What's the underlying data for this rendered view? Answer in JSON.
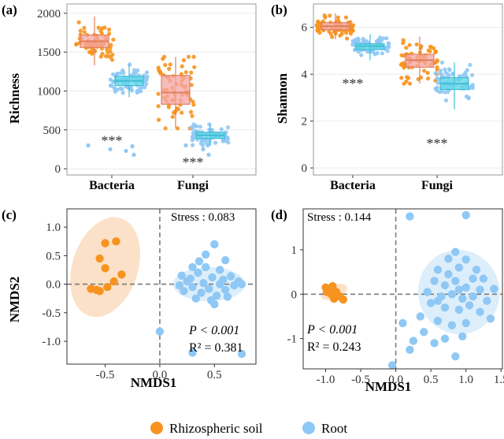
{
  "colors": {
    "soil": "#f7931e",
    "root": "#8fc8f4",
    "soil_box": "#f4a6a6",
    "root_box": "#5fd6e8",
    "soil_ellipse": "#fbdcc0",
    "root_ellipse": "#d7ebfa",
    "panel_border": "#9a9a9a",
    "dash": "#7a7a7a"
  },
  "chart_data": [
    {
      "panel_label": "(a)",
      "type": "box",
      "title": "",
      "xlabel": "",
      "ylabel": "Richness",
      "categories": [
        "Bacteria",
        "Fungi"
      ],
      "ylim": [
        -80,
        2120
      ],
      "yticks": [
        0,
        500,
        1000,
        1500,
        2000
      ],
      "yticklabels": [
        "0",
        "500",
        "1000",
        "1500",
        "2000"
      ],
      "series": [
        {
          "name": "Rhizospheric soil",
          "color_key": "soil",
          "boxes": [
            {
              "category": "Bacteria",
              "q1": 1560,
              "median": 1640,
              "q3": 1720,
              "whisker_low": 1330,
              "whisker_high": 1960
            },
            {
              "category": "Fungi",
              "q1": 830,
              "median": 980,
              "q3": 1200,
              "whisker_low": 520,
              "whisker_high": 1440
            }
          ]
        },
        {
          "name": "Root",
          "color_key": "root",
          "boxes": [
            {
              "category": "Bacteria",
              "q1": 1070,
              "median": 1130,
              "q3": 1190,
              "whisker_low": 920,
              "whisker_high": 1340
            },
            {
              "category": "Fungi",
              "q1": 390,
              "median": 430,
              "q3": 470,
              "whisker_low": 300,
              "whisker_high": 570
            }
          ]
        }
      ],
      "annotations": [
        {
          "category": "Bacteria",
          "y": 300,
          "text": "***"
        },
        {
          "category": "Fungi",
          "y": 20,
          "text": "***"
        }
      ]
    },
    {
      "panel_label": "(b)",
      "type": "box",
      "title": "",
      "xlabel": "",
      "ylabel": "Shannon",
      "categories": [
        "Bacteria",
        "Fungi"
      ],
      "ylim": [
        -0.3,
        7.0
      ],
      "yticks": [
        0,
        2,
        4,
        6
      ],
      "yticklabels": [
        "0",
        "2",
        "4",
        "6"
      ],
      "series": [
        {
          "name": "Rhizospheric soil",
          "color_key": "soil",
          "boxes": [
            {
              "category": "Bacteria",
              "q1": 5.9,
              "median": 6.05,
              "q3": 6.2,
              "whisker_low": 5.5,
              "whisker_high": 6.6
            },
            {
              "category": "Fungi",
              "q1": 4.3,
              "median": 4.6,
              "q3": 4.85,
              "whisker_low": 3.6,
              "whisker_high": 5.6
            }
          ]
        },
        {
          "name": "Root",
          "color_key": "root",
          "boxes": [
            {
              "category": "Bacteria",
              "q1": 5.05,
              "median": 5.2,
              "q3": 5.3,
              "whisker_low": 4.6,
              "whisker_high": 5.7
            },
            {
              "category": "Fungi",
              "q1": 3.35,
              "median": 3.6,
              "q3": 3.85,
              "whisker_low": 2.5,
              "whisker_high": 4.5
            }
          ]
        }
      ],
      "annotations": [
        {
          "category": "Bacteria",
          "y": 3.4,
          "text": "***"
        },
        {
          "category": "Fungi",
          "y": 0.85,
          "text": "***"
        }
      ]
    },
    {
      "panel_label": "(c)",
      "type": "scatter",
      "xlabel": "NMDS1",
      "ylabel": "NMDS2",
      "xlim": [
        -0.85,
        0.88
      ],
      "ylim": [
        -1.4,
        1.32
      ],
      "xticks": [
        -0.5,
        0.0,
        0.5
      ],
      "xticklabels": [
        "-0.5",
        "0.0",
        "0.5"
      ],
      "yticks": [
        -1.0,
        -0.5,
        0.0,
        0.5,
        1.0
      ],
      "yticklabels": [
        "-1.0",
        "-0.5",
        "0.0",
        "0.5",
        "1.0"
      ],
      "stress_text": "Stress : 0.083",
      "p_text": "P <  0.001",
      "r2_text": "R² = 0.381",
      "ellipses": [
        {
          "series": "Rhizospheric soil",
          "cx": -0.5,
          "cy": 0.3,
          "rx": 0.3,
          "ry": 0.9,
          "angle": 18
        },
        {
          "series": "Root",
          "cx": 0.45,
          "cy": 0.0,
          "rx": 0.33,
          "ry": 0.3,
          "angle": 0
        }
      ],
      "series": [
        {
          "name": "Rhizospheric soil",
          "color_key": "soil",
          "points": [
            [
              -0.5,
              0.72
            ],
            [
              -0.4,
              0.75
            ],
            [
              -0.55,
              0.45
            ],
            [
              -0.5,
              0.28
            ],
            [
              -0.35,
              0.17
            ],
            [
              -0.42,
              0.05
            ],
            [
              -0.48,
              -0.05
            ],
            [
              -0.58,
              -0.1
            ],
            [
              -0.63,
              -0.08
            ],
            [
              -0.55,
              -0.12
            ]
          ]
        },
        {
          "name": "Root",
          "color_key": "root",
          "points": [
            [
              0.5,
              0.7
            ],
            [
              0.42,
              0.52
            ],
            [
              0.6,
              0.42
            ],
            [
              0.3,
              0.3
            ],
            [
              0.55,
              0.25
            ],
            [
              0.2,
              0.15
            ],
            [
              0.35,
              0.2
            ],
            [
              0.48,
              0.12
            ],
            [
              0.65,
              0.14
            ],
            [
              0.72,
              0.05
            ],
            [
              0.25,
              0.05
            ],
            [
              0.4,
              0.02
            ],
            [
              0.55,
              0.0
            ],
            [
              0.68,
              -0.02
            ],
            [
              0.3,
              -0.05
            ],
            [
              0.45,
              -0.08
            ],
            [
              0.6,
              -0.1
            ],
            [
              0.22,
              -0.12
            ],
            [
              0.38,
              -0.15
            ],
            [
              0.52,
              -0.2
            ],
            [
              0.33,
              -0.25
            ],
            [
              0.47,
              -0.28
            ],
            [
              0.62,
              -0.22
            ],
            [
              0.28,
              0.1
            ],
            [
              0.58,
              0.08
            ],
            [
              0.75,
              0.0
            ],
            [
              0.18,
              -0.02
            ],
            [
              0.42,
              0.3
            ],
            [
              0.5,
              -0.35
            ],
            [
              0.36,
              0.4
            ],
            [
              0.0,
              -0.83
            ],
            [
              0.3,
              -1.2
            ],
            [
              0.75,
              -1.22
            ]
          ]
        }
      ]
    },
    {
      "panel_label": "(d)",
      "type": "scatter",
      "xlabel": "NMDS1",
      "ylabel": "",
      "xlim": [
        -1.32,
        1.52
      ],
      "ylim": [
        -1.68,
        1.92
      ],
      "xticks": [
        -1.0,
        -0.5,
        0.0,
        0.5,
        1.0,
        1.5
      ],
      "xticklabels": [
        "-1.0",
        "-0.5",
        "0.0",
        "0.5",
        "1.0",
        "1.5"
      ],
      "yticks": [
        -1,
        0,
        1
      ],
      "yticklabels": [
        "-1",
        "0",
        "1"
      ],
      "stress_text": "Stress : 0.144",
      "p_text": "P <  0.001",
      "r2_text": "R² = 0.243",
      "ellipses": [
        {
          "series": "Rhizospheric soil",
          "cx": -0.88,
          "cy": 0.05,
          "rx": 0.2,
          "ry": 0.16,
          "angle": -20
        },
        {
          "series": "Root",
          "cx": 0.9,
          "cy": 0.05,
          "rx": 0.58,
          "ry": 0.95,
          "angle": -15
        }
      ],
      "series": [
        {
          "name": "Rhizospheric soil",
          "color_key": "soil",
          "points": [
            [
              -1.0,
              0.15
            ],
            [
              -0.95,
              0.1
            ],
            [
              -0.9,
              0.18
            ],
            [
              -0.85,
              0.05
            ],
            [
              -0.92,
              0.0
            ],
            [
              -0.8,
              -0.05
            ],
            [
              -0.88,
              -0.1
            ],
            [
              -0.75,
              -0.12
            ],
            [
              -0.98,
              0.05
            ]
          ]
        },
        {
          "name": "Root",
          "color_key": "root",
          "points": [
            [
              0.2,
              1.75
            ],
            [
              1.0,
              1.78
            ],
            [
              0.85,
              0.95
            ],
            [
              0.75,
              0.8
            ],
            [
              1.0,
              0.78
            ],
            [
              0.6,
              0.55
            ],
            [
              0.9,
              0.6
            ],
            [
              1.15,
              0.55
            ],
            [
              1.25,
              0.35
            ],
            [
              0.55,
              0.3
            ],
            [
              0.7,
              0.2
            ],
            [
              0.85,
              0.3
            ],
            [
              1.0,
              0.15
            ],
            [
              1.2,
              0.1
            ],
            [
              1.4,
              0.12
            ],
            [
              0.45,
              0.05
            ],
            [
              0.65,
              -0.05
            ],
            [
              0.8,
              0.0
            ],
            [
              0.95,
              -0.1
            ],
            [
              1.1,
              -0.05
            ],
            [
              1.3,
              -0.15
            ],
            [
              0.5,
              -0.2
            ],
            [
              0.7,
              -0.3
            ],
            [
              0.9,
              -0.35
            ],
            [
              1.05,
              -0.25
            ],
            [
              1.2,
              -0.4
            ],
            [
              0.35,
              -0.5
            ],
            [
              0.6,
              -0.6
            ],
            [
              0.8,
              -0.7
            ],
            [
              1.0,
              -0.65
            ],
            [
              0.4,
              -0.85
            ],
            [
              0.7,
              -1.0
            ],
            [
              0.95,
              -0.95
            ],
            [
              0.25,
              -1.05
            ],
            [
              0.55,
              -1.1
            ],
            [
              0.2,
              -1.25
            ],
            [
              0.85,
              -1.4
            ],
            [
              0.1,
              -0.65
            ],
            [
              1.35,
              -0.55
            ],
            [
              0.75,
              0.45
            ],
            [
              1.1,
              0.35
            ],
            [
              0.6,
              -0.15
            ],
            [
              0.9,
              0.1
            ],
            [
              -0.05,
              -1.6
            ]
          ]
        }
      ]
    }
  ],
  "legend": [
    {
      "label": "Rhizospheric soil",
      "color_key": "soil"
    },
    {
      "label": "Root",
      "color_key": "root"
    }
  ]
}
